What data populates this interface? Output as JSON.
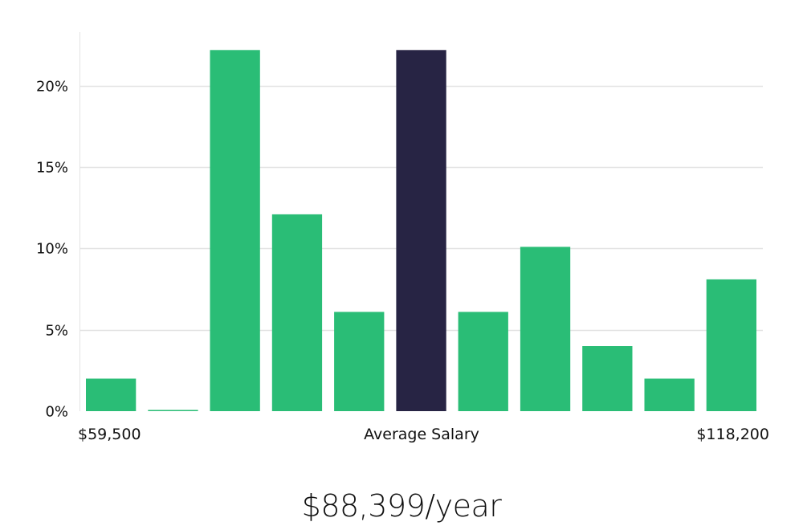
{
  "chart_data": {
    "type": "bar",
    "values": [
      2,
      0,
      22.2,
      12.1,
      6.1,
      22.2,
      6.1,
      10.1,
      4,
      2,
      8.1
    ],
    "highlight_index": 5,
    "ylim": [
      0,
      23.3
    ],
    "yticks": [
      0,
      5,
      10,
      15,
      20
    ],
    "ytick_labels": [
      "0%",
      "5%",
      "10%",
      "15%",
      "20%"
    ],
    "x_min_label": "$59,500",
    "x_center_label": "Average Salary",
    "x_max_label": "$118,200",
    "colors": {
      "bar": "#2abd76",
      "highlight": "#272444",
      "grid": "#e3e3e3"
    }
  },
  "summary": {
    "headline": "$88,399/year"
  }
}
